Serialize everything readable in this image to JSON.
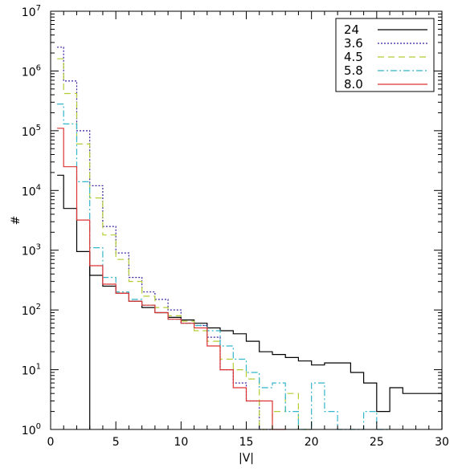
{
  "chart_data": {
    "type": "line",
    "title": "",
    "xlabel": "|V|",
    "ylabel": "#",
    "xlim": [
      0,
      30
    ],
    "ylim": [
      1,
      10000000
    ],
    "yscale": "log",
    "grid": false,
    "legend_position": "top-right",
    "x_ticks": [
      "0",
      "5",
      "10",
      "15",
      "20",
      "25",
      "30"
    ],
    "y_ticks": [
      {
        "base": "10",
        "exp": "0"
      },
      {
        "base": "10",
        "exp": "1"
      },
      {
        "base": "10",
        "exp": "2"
      },
      {
        "base": "10",
        "exp": "3"
      },
      {
        "base": "10",
        "exp": "4"
      },
      {
        "base": "10",
        "exp": "5"
      },
      {
        "base": "10",
        "exp": "6"
      },
      {
        "base": "10",
        "exp": "7"
      }
    ],
    "series": [
      {
        "name": "24",
        "color": "#000000",
        "dash": "",
        "bin_edges": [
          0.5,
          1,
          2,
          3,
          4,
          5,
          6,
          7,
          8,
          9,
          10,
          11,
          12,
          13,
          14,
          15,
          16,
          17,
          18,
          19,
          20,
          21,
          22,
          23,
          24,
          25,
          26,
          27,
          28,
          29,
          30
        ],
        "values": [
          18000,
          5000,
          950,
          380,
          250,
          190,
          140,
          110,
          90,
          75,
          68,
          60,
          50,
          45,
          40,
          30,
          20,
          18,
          16,
          14,
          12,
          13,
          13,
          9,
          6,
          2,
          5,
          4,
          4,
          4
        ],
        "drop_x": 3
      },
      {
        "name": "3.6",
        "color": "#3b1f9e",
        "dash": "2,2",
        "bin_edges": [
          0.5,
          1,
          2,
          3,
          4,
          5,
          6,
          7,
          8,
          9,
          10,
          11,
          12,
          13,
          14,
          15,
          16,
          17
        ],
        "values": [
          2500000,
          680000,
          100000,
          12000,
          2500,
          900,
          350,
          200,
          150,
          100,
          60,
          55,
          35,
          10,
          6,
          3,
          1
        ]
      },
      {
        "name": "4.5",
        "color": "#b5cc33",
        "dash": "8,5",
        "bin_edges": [
          0.5,
          1,
          2,
          3,
          4,
          5,
          6,
          7,
          8,
          9,
          10,
          11,
          12,
          13,
          14,
          15,
          16,
          17,
          18,
          19,
          20
        ],
        "values": [
          1600000,
          420000,
          60000,
          7500,
          1800,
          700,
          300,
          170,
          110,
          80,
          65,
          45,
          30,
          15,
          10,
          7,
          1,
          2,
          4,
          1
        ]
      },
      {
        "name": "5.8",
        "color": "#33b5cc",
        "dash": "8,3,2,3",
        "bin_edges": [
          0.5,
          1,
          2,
          3,
          4,
          5,
          6,
          7,
          8,
          9,
          10,
          11,
          12,
          13,
          14,
          15,
          16,
          17,
          18,
          19,
          20,
          21,
          22,
          23,
          24,
          25,
          26
        ],
        "values": [
          280000,
          130000,
          14000,
          1100,
          350,
          200,
          150,
          120,
          90,
          70,
          60,
          55,
          45,
          25,
          15,
          9,
          5,
          6,
          2,
          1,
          6,
          2,
          1,
          1,
          2,
          1
        ]
      },
      {
        "name": "8.0",
        "color": "#dd3333",
        "dash": "",
        "bin_edges": [
          0.5,
          1,
          2,
          3,
          4,
          5,
          6,
          7,
          8,
          9,
          10,
          11,
          12,
          13,
          14,
          15,
          16,
          17,
          18
        ],
        "values": [
          110000,
          25000,
          3200,
          550,
          270,
          190,
          140,
          120,
          90,
          70,
          60,
          50,
          25,
          10,
          5,
          3,
          3,
          1
        ]
      }
    ]
  }
}
